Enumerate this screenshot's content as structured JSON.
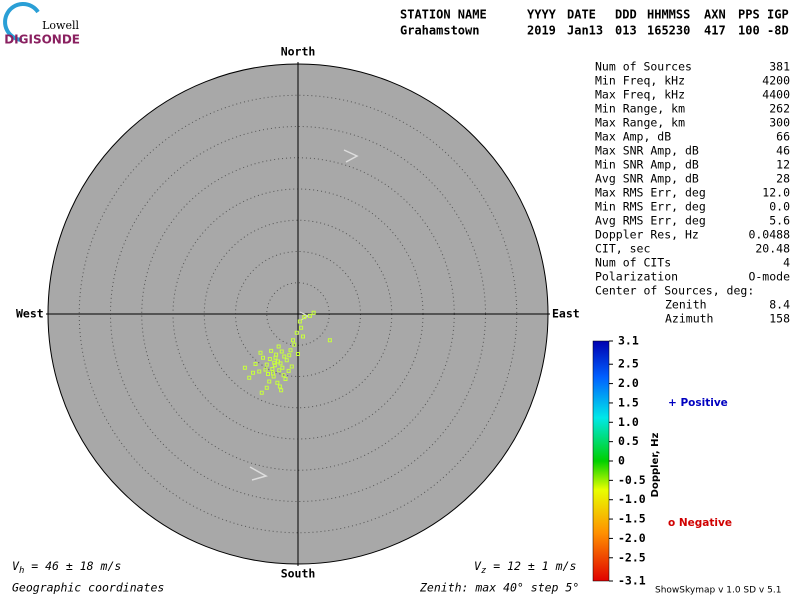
{
  "logo": {
    "line1": "Lowell",
    "line2": "DIGISONDE"
  },
  "header": [
    {
      "label": "STATION NAME",
      "value": "Grahamstown"
    },
    {
      "label": "YYYY",
      "value": "2019"
    },
    {
      "label": "DATE",
      "value": "Jan13"
    },
    {
      "label": "DDD",
      "value": "013"
    },
    {
      "label": "HHMMSS",
      "value": "165230"
    },
    {
      "label": "AXN",
      "value": "417"
    },
    {
      "label": "PPS",
      "value": "100"
    },
    {
      "label": "IGP",
      "value": "-8D"
    }
  ],
  "stats": [
    [
      "Num of Sources",
      "381"
    ],
    [
      "Min Freq, kHz",
      "4200"
    ],
    [
      "Max Freq, kHz",
      "4400"
    ],
    [
      "Min Range, km",
      "262"
    ],
    [
      "Max Range, km",
      "300"
    ],
    [
      "Max Amp, dB",
      "66"
    ],
    [
      "Max SNR Amp, dB",
      "46"
    ],
    [
      "Min SNR Amp, dB",
      "12"
    ],
    [
      "Avg SNR Amp, dB",
      "28"
    ],
    [
      "Max RMS Err, deg",
      "12.0"
    ],
    [
      "Min RMS Err, deg",
      "0.0"
    ],
    [
      "Avg RMS Err, deg",
      "5.6"
    ],
    [
      "Doppler Res, Hz",
      "0.0488"
    ],
    [
      "CIT, sec",
      "20.48"
    ],
    [
      "Num of CITs",
      "4"
    ],
    [
      "Polarization",
      "O-mode"
    ]
  ],
  "center_of_sources": {
    "label": "Center of Sources, deg:",
    "zenith": {
      "label": "Zenith",
      "value": "8.4"
    },
    "azimuth": {
      "label": "Azimuth",
      "value": "158"
    }
  },
  "directions": {
    "north": "North",
    "south": "South",
    "east": "East",
    "west": "West"
  },
  "skymap": {
    "zenith_max": 40,
    "step": 5,
    "color": "#c8ff3c",
    "east": [
      -3.7,
      -3.2,
      -4.1,
      -2.8,
      -4.5,
      -3.0,
      -2.2,
      -5.0,
      -3.5,
      -1.8,
      -4.8,
      -2.5,
      -3.9,
      -1.2,
      -0.6,
      -5.6,
      -6.2,
      -2.0,
      -3.3,
      -4.3,
      -1.5,
      -0.2,
      0.5,
      1.0,
      0.3,
      -0.8,
      1.9,
      2.5,
      5.1,
      -8.5,
      -7.8,
      -5.8,
      -5.0,
      -6.8,
      -2.6,
      -3.6,
      -4.0,
      -2.9,
      -1.0,
      0.0,
      -6.0,
      -4.6,
      -3.1,
      -2.3,
      -7.2,
      0.8,
      -1.4,
      -3.8,
      -5.2,
      -2.7
    ],
    "north": [
      -8.2,
      -7.6,
      -8.8,
      -7.9,
      -7.2,
      -9.0,
      -6.8,
      -8.1,
      -6.5,
      -7.4,
      -9.6,
      -8.6,
      -10.0,
      -5.8,
      -4.9,
      -7.0,
      -9.2,
      -10.4,
      -11.0,
      -5.9,
      -9.1,
      -3.0,
      -2.2,
      -0.5,
      -1.2,
      -4.2,
      -0.3,
      0.2,
      -4.2,
      -8.6,
      -10.2,
      -12.6,
      -11.8,
      -8.0,
      -6.0,
      -7.0,
      -9.5,
      -11.6,
      -8.4,
      -6.4,
      -6.2,
      -10.8,
      -5.2,
      -9.8,
      -9.4,
      -3.6,
      -6.6,
      -7.8,
      -8.9,
      -12.2
    ]
  },
  "colorbar": {
    "title": "Doppler, Hz",
    "lim": [
      -3.1,
      3.1
    ],
    "ticks": [
      3.1,
      2.5,
      {
        "value": 2,
        "label": "2.0"
      },
      1.5,
      {
        "value": 1,
        "label": "1.0"
      },
      0.5,
      0,
      -0.5,
      {
        "value": -1,
        "label": "-1.0"
      },
      -1.5,
      {
        "value": -2,
        "label": "-2.0"
      },
      -2.5,
      -3.1
    ],
    "positive": "+ Positive",
    "negative": "o Negative"
  },
  "footer": {
    "vh_v": "V",
    "vh_sub": "h",
    "vh_text": " = 46 ± 18 m/s",
    "vz_v": "V",
    "vz_sub": "z",
    "vz_text": " = 12 ± 1 m/s",
    "coords": "Geographic coordinates",
    "zenith": "Zenith: max 40°  step 5°",
    "version": "ShowSkymap v 1.0  SD v 5.1"
  }
}
